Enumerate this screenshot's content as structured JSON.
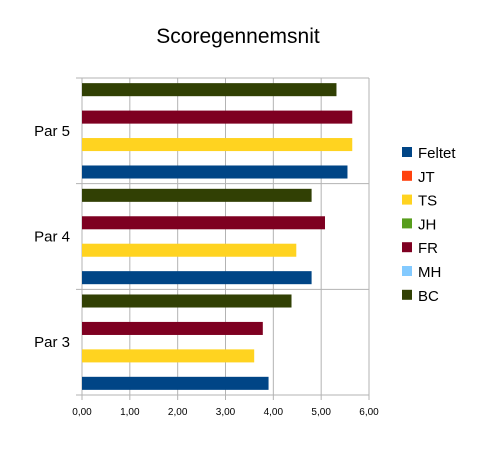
{
  "chart_data": {
    "type": "bar",
    "orientation": "horizontal",
    "title": "Scoregennemsnit",
    "categories": [
      "Par 3",
      "Par 4",
      "Par 5"
    ],
    "xlim": [
      0,
      6
    ],
    "xticks": [
      "0,00",
      "1,00",
      "2,00",
      "3,00",
      "4,00",
      "5,00",
      "6,00"
    ],
    "grid": true,
    "legend_position": "right",
    "series": [
      {
        "name": "Feltet",
        "color": "#004586",
        "values": [
          3.9,
          4.8,
          5.55
        ]
      },
      {
        "name": "JT",
        "color": "#ff420e",
        "values": [
          null,
          null,
          null
        ]
      },
      {
        "name": "TS",
        "color": "#ffd320",
        "values": [
          3.6,
          4.48,
          5.65
        ]
      },
      {
        "name": "JH",
        "color": "#579d1c",
        "values": [
          null,
          null,
          null
        ]
      },
      {
        "name": "FR",
        "color": "#7e0021",
        "values": [
          3.78,
          5.08,
          5.65
        ]
      },
      {
        "name": "MH",
        "color": "#83caff",
        "values": [
          null,
          null,
          null
        ]
      },
      {
        "name": "BC",
        "color": "#314004",
        "values": [
          4.38,
          4.8,
          5.32
        ]
      }
    ]
  }
}
